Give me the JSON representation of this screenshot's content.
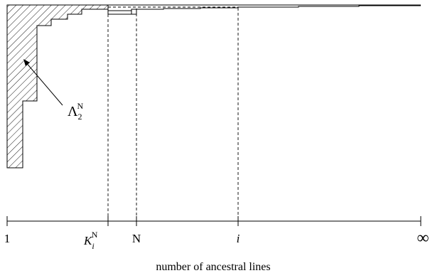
{
  "figure": {
    "region_label": {
      "base": "Λ",
      "sub": "2",
      "sup": "N"
    },
    "axis": {
      "label": "number of ancestral lines",
      "ticks": [
        {
          "id": "one",
          "text": "1"
        },
        {
          "id": "kin",
          "base": "K",
          "sub": "i",
          "sup": "N"
        },
        {
          "id": "n",
          "text": "N"
        },
        {
          "id": "i",
          "text": "i"
        },
        {
          "id": "inf",
          "text": "∞"
        }
      ]
    }
  }
}
